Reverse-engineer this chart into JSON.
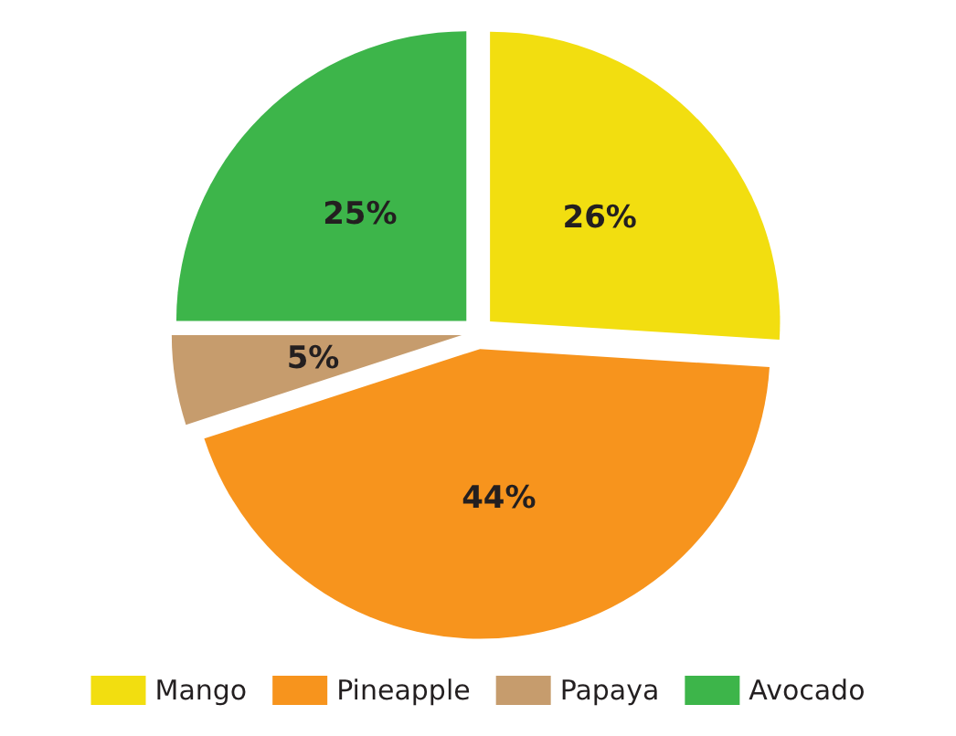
{
  "chart_data": {
    "type": "pie",
    "categories": [
      "Mango",
      "Pineapple",
      "Papaya",
      "Avocado"
    ],
    "values": [
      26,
      44,
      5,
      25
    ],
    "colors": [
      "#f2de10",
      "#f7941d",
      "#c69c6d",
      "#3db54a"
    ],
    "value_labels": [
      "26%",
      "44%",
      "5%",
      "25%"
    ],
    "legend": "bottom"
  }
}
